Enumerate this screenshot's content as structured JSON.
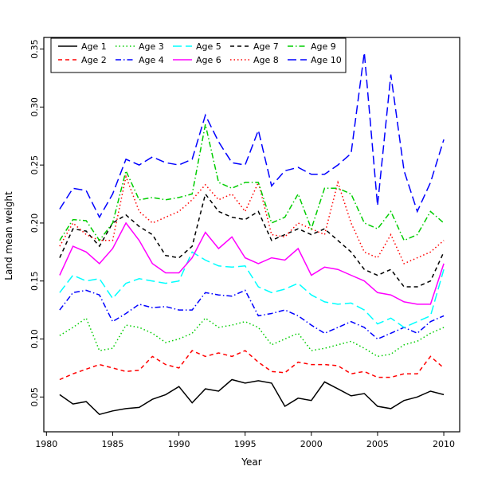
{
  "chart_data": {
    "type": "line",
    "title": "",
    "xlabel": "Year",
    "ylabel": "Land mean weight",
    "grid": false,
    "legend_position": "top-left",
    "legend_columns": 5,
    "xlim": [
      1979.8,
      2011.2
    ],
    "ylim": [
      0.02,
      0.36
    ],
    "x_ticks": [
      1980,
      1985,
      1990,
      1995,
      2000,
      2005,
      2010
    ],
    "y_ticks": [
      0.05,
      0.1,
      0.15,
      0.2,
      0.25,
      0.3,
      0.35
    ],
    "x": [
      1981,
      1982,
      1983,
      1984,
      1985,
      1986,
      1987,
      1988,
      1989,
      1990,
      1991,
      1992,
      1993,
      1994,
      1995,
      1996,
      1997,
      1998,
      1999,
      2000,
      2001,
      2002,
      2003,
      2004,
      2005,
      2006,
      2007,
      2008,
      2009,
      2010
    ],
    "series": [
      {
        "name": "Age 1",
        "color": "#000000",
        "linetype": "solid",
        "values": [
          0.052,
          0.044,
          0.046,
          0.035,
          0.038,
          0.04,
          0.041,
          0.048,
          0.052,
          0.059,
          0.045,
          0.057,
          0.055,
          0.065,
          0.062,
          0.064,
          0.062,
          0.042,
          0.049,
          0.047,
          0.063,
          0.057,
          0.051,
          0.053,
          0.042,
          0.04,
          0.047,
          0.05,
          0.055,
          0.052
        ]
      },
      {
        "name": "Age 2",
        "color": "#FF0000",
        "linetype": "dashed",
        "values": [
          0.065,
          0.07,
          0.074,
          0.078,
          0.075,
          0.072,
          0.073,
          0.085,
          0.078,
          0.075,
          0.09,
          0.085,
          0.088,
          0.085,
          0.09,
          0.08,
          0.072,
          0.071,
          0.08,
          0.078,
          0.078,
          0.077,
          0.07,
          0.072,
          0.067,
          0.067,
          0.07,
          0.07,
          0.085,
          0.075
        ]
      },
      {
        "name": "Age 3",
        "color": "#00CD00",
        "linetype": "dotted",
        "values": [
          0.103,
          0.11,
          0.118,
          0.09,
          0.092,
          0.112,
          0.11,
          0.105,
          0.097,
          0.1,
          0.105,
          0.118,
          0.11,
          0.112,
          0.115,
          0.11,
          0.095,
          0.1,
          0.105,
          0.09,
          0.092,
          0.095,
          0.098,
          0.092,
          0.085,
          0.087,
          0.095,
          0.098,
          0.105,
          0.11
        ]
      },
      {
        "name": "Age 4",
        "color": "#0000FF",
        "linetype": "dashdot",
        "values": [
          0.125,
          0.14,
          0.142,
          0.138,
          0.115,
          0.122,
          0.13,
          0.127,
          0.128,
          0.125,
          0.125,
          0.14,
          0.138,
          0.137,
          0.142,
          0.12,
          0.122,
          0.125,
          0.12,
          0.112,
          0.105,
          0.11,
          0.115,
          0.11,
          0.1,
          0.105,
          0.11,
          0.105,
          0.115,
          0.12
        ]
      },
      {
        "name": "Age 5",
        "color": "#00FFFF",
        "linetype": "longdash",
        "values": [
          0.14,
          0.155,
          0.15,
          0.152,
          0.135,
          0.148,
          0.152,
          0.15,
          0.148,
          0.15,
          0.175,
          0.168,
          0.163,
          0.162,
          0.163,
          0.145,
          0.14,
          0.143,
          0.148,
          0.138,
          0.132,
          0.13,
          0.131,
          0.125,
          0.113,
          0.118,
          0.11,
          0.115,
          0.12,
          0.16
        ]
      },
      {
        "name": "Age 6",
        "color": "#FF00FF",
        "linetype": "solid",
        "values": [
          0.155,
          0.18,
          0.175,
          0.165,
          0.178,
          0.2,
          0.185,
          0.165,
          0.157,
          0.157,
          0.17,
          0.192,
          0.178,
          0.188,
          0.17,
          0.165,
          0.17,
          0.168,
          0.178,
          0.155,
          0.162,
          0.16,
          0.155,
          0.15,
          0.14,
          0.138,
          0.132,
          0.13,
          0.13,
          0.165
        ]
      },
      {
        "name": "Age 7",
        "color": "#000000",
        "linetype": "dashed",
        "values": [
          0.17,
          0.195,
          0.193,
          0.18,
          0.2,
          0.207,
          0.197,
          0.19,
          0.172,
          0.17,
          0.18,
          0.225,
          0.21,
          0.205,
          0.203,
          0.21,
          0.185,
          0.19,
          0.195,
          0.19,
          0.195,
          0.185,
          0.175,
          0.16,
          0.155,
          0.16,
          0.145,
          0.145,
          0.15,
          0.175
        ]
      },
      {
        "name": "Age 8",
        "color": "#FF0000",
        "linetype": "dotted",
        "values": [
          0.18,
          0.2,
          0.19,
          0.185,
          0.185,
          0.24,
          0.21,
          0.2,
          0.205,
          0.21,
          0.22,
          0.233,
          0.22,
          0.225,
          0.21,
          0.235,
          0.19,
          0.188,
          0.2,
          0.195,
          0.19,
          0.235,
          0.2,
          0.175,
          0.17,
          0.19,
          0.165,
          0.17,
          0.175,
          0.185
        ]
      },
      {
        "name": "Age 9",
        "color": "#00CD00",
        "linetype": "dashdot",
        "values": [
          0.185,
          0.203,
          0.202,
          0.185,
          0.2,
          0.245,
          0.22,
          0.222,
          0.22,
          0.222,
          0.225,
          0.285,
          0.235,
          0.23,
          0.235,
          0.235,
          0.2,
          0.205,
          0.225,
          0.195,
          0.23,
          0.23,
          0.225,
          0.2,
          0.195,
          0.21,
          0.185,
          0.19,
          0.21,
          0.2
        ]
      },
      {
        "name": "Age 10",
        "color": "#0000FF",
        "linetype": "longdash",
        "values": [
          0.212,
          0.23,
          0.228,
          0.205,
          0.225,
          0.255,
          0.25,
          0.257,
          0.252,
          0.25,
          0.255,
          0.293,
          0.27,
          0.252,
          0.25,
          0.28,
          0.232,
          0.245,
          0.248,
          0.242,
          0.242,
          0.25,
          0.26,
          0.347,
          0.215,
          0.328,
          0.245,
          0.21,
          0.235,
          0.272
        ]
      }
    ]
  }
}
